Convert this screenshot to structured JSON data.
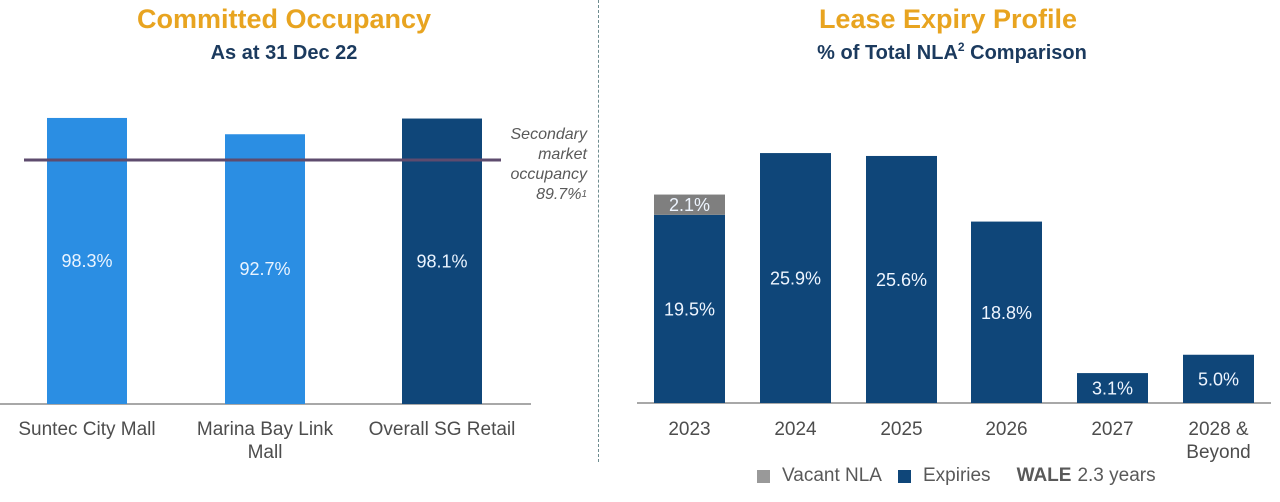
{
  "chart_data": [
    {
      "type": "bar",
      "title": "Committed Occupancy",
      "subtitle": "As at 31 Dec 22",
      "categories": [
        "Suntec City Mall",
        "Marina Bay Link Mall",
        "Overall SG Retail"
      ],
      "category_lines": [
        [
          "Suntec City Mall"
        ],
        [
          "Marina Bay Link",
          "Mall"
        ],
        [
          "Overall SG Retail"
        ]
      ],
      "values": [
        98.3,
        92.7,
        98.1
      ],
      "value_labels": [
        "98.3%",
        "92.7%",
        "98.1%"
      ],
      "bar_colors": [
        "#2B8EE3",
        "#2B8EE3",
        "#0F4679"
      ],
      "unit": "%",
      "xlabel": "",
      "ylabel": "",
      "ylim": [
        0,
        100
      ],
      "grid": false,
      "reference_line": {
        "value": 89.7,
        "color": "#5E4B6E",
        "label_lines": [
          "Secondary",
          "market",
          "occupancy"
        ],
        "label_value": "89.7%",
        "label_footnote": "1"
      }
    },
    {
      "type": "bar",
      "stacked": true,
      "title": "Lease Expiry Profile",
      "subtitle_main": "% of Total NLA",
      "subtitle_sup": "2",
      "subtitle_tail": " Comparison",
      "categories": [
        "2023",
        "2024",
        "2025",
        "2026",
        "2027",
        "2028 & Beyond"
      ],
      "category_lines": [
        [
          "2023"
        ],
        [
          "2024"
        ],
        [
          "2025"
        ],
        [
          "2026"
        ],
        [
          "2027"
        ],
        [
          "2028 &",
          "Beyond"
        ]
      ],
      "series": [
        {
          "name": "Expiries",
          "color": "#0F4679",
          "values": [
            19.5,
            25.9,
            25.6,
            18.8,
            3.1,
            5.0
          ],
          "labels": [
            "19.5%",
            "25.9%",
            "25.6%",
            "18.8%",
            "3.1%",
            "5.0%"
          ]
        },
        {
          "name": "Vacant NLA",
          "color": "#7F7F7F",
          "values": [
            2.1,
            0,
            0,
            0,
            0,
            0
          ],
          "labels": [
            "2.1%",
            "",
            "",
            "",
            "",
            ""
          ]
        }
      ],
      "unit": "%",
      "xlabel": "",
      "ylabel": "",
      "ylim": [
        0,
        26
      ],
      "grid": false,
      "legend": {
        "placement": "bottom",
        "items": [
          {
            "name": "Vacant NLA",
            "color": "#999999"
          },
          {
            "name": "Expiries",
            "color": "#0F4679"
          }
        ],
        "wale_key": "WALE",
        "wale_value": "2.3 years"
      }
    }
  ]
}
